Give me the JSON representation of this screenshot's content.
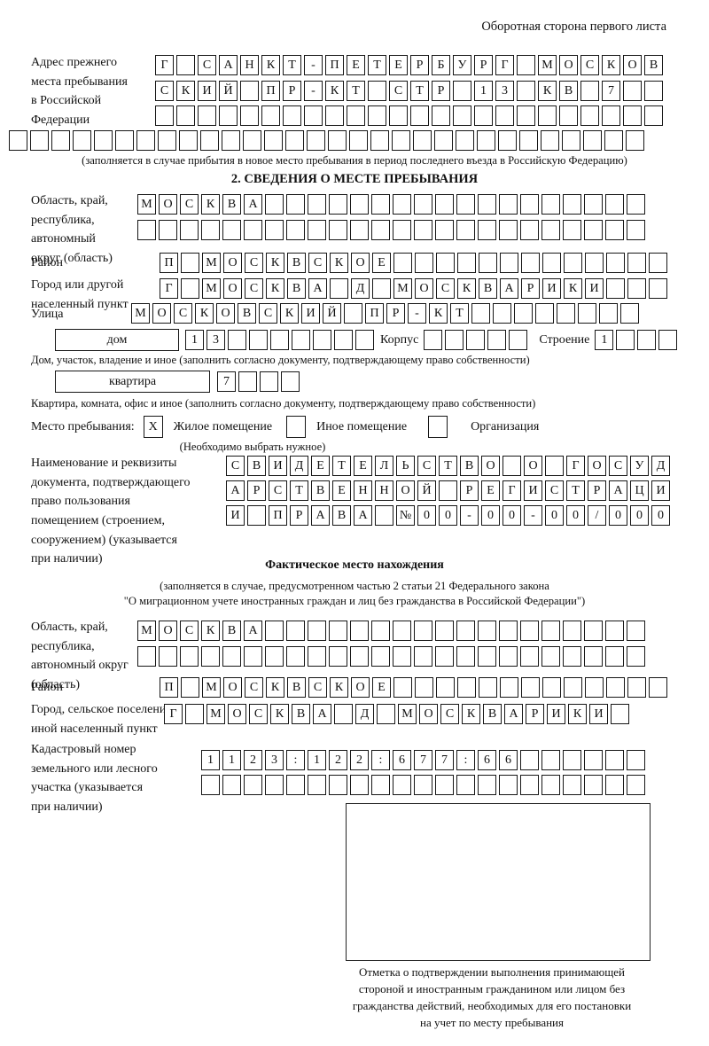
{
  "header": {
    "note": "Оборотная сторона первого листа"
  },
  "prev_address": {
    "label": "Адрес прежнего\nместа пребывания\nв Российской\nФедерации",
    "rows": [
      {
        "text": "Г САНКТ-ПЕТЕРБУРГ МОСКОВ",
        "len": 24
      },
      {
        "text": "СКИЙ ПР-КТ СТР 13 КВ 7",
        "len": 24
      },
      {
        "text": "",
        "len": 24
      },
      {
        "text": "",
        "len": 30
      }
    ],
    "note": "(заполняется в случае прибытия в новое место пребывания в период последнего въезда в Российскую Федерацию)"
  },
  "section2": {
    "title": "2. СВЕДЕНИЯ О МЕСТЕ ПРЕБЫВАНИЯ",
    "oblast": {
      "label": "Область, край,\nреспублика,\nавтономный\nокруг (область)",
      "rows": [
        {
          "text": "МОСКВА",
          "len": 24
        },
        {
          "text": "",
          "len": 24
        }
      ]
    },
    "raion": {
      "label": "Район",
      "row": {
        "text": "П МОСКВСКОЕ",
        "len": 24
      }
    },
    "gorod": {
      "label": "Город или другой\nнаселенный пункт",
      "row": {
        "text": "Г МОСКВА Д МОСКВАРИКИ",
        "len": 24
      }
    },
    "ulica": {
      "label": "Улица",
      "row": {
        "text": "МОСКОВСКИЙ ПР-КТ",
        "len": 24
      }
    },
    "dom": {
      "field_label": "дом",
      "cells": {
        "text": "13",
        "len": 9
      },
      "korpus_label": "Корпус",
      "korpus_cells": {
        "text": "",
        "len": 5
      },
      "stroenie_label": "Строение",
      "stroenie_cells": {
        "text": "1",
        "len": 4
      },
      "note": "Дом, участок, владение и иное (заполнить согласно документу, подтверждающему право собственности)"
    },
    "kvartira": {
      "field_label": "квартира",
      "cells": {
        "text": "7",
        "len": 4
      },
      "note": "Квартира, комната, офис и иное (заполнить согласно документу, подтверждающему право собственности)"
    },
    "mesto": {
      "label": "Место пребывания:",
      "zhiloe_value": "X",
      "zhiloe_label": "Жилое помещение",
      "inoe_value": "",
      "inoe_label": "Иное помещение",
      "org_value": "",
      "org_label": "Организация",
      "note": "(Необходимо выбрать нужное)"
    },
    "doc": {
      "label": "Наименование и реквизиты\nдокумента, подтверждающего\nправо пользования\nпомещением (строением,\nсооружением) (указывается\nпри наличии)",
      "rows": [
        {
          "text": "СВИДЕТЕЛЬСТВО О ГОСУД",
          "len": 21
        },
        {
          "text": "АРСТВЕННОЙ РЕГИСТРАЦИ",
          "len": 21
        },
        {
          "text": "И ПРАВА №00-00-00/000",
          "len": 21
        }
      ]
    }
  },
  "fact": {
    "title": "Фактическое место нахождения",
    "note1": "(заполняется в случае, предусмотренном частью 2 статьи 21 Федерального закона",
    "note2": "\"О миграционном учете иностранных граждан и лиц без гражданства в Российской Федерации\")",
    "oblast": {
      "label": "Область, край,\nреспублика,\nавтономный округ\n(область)",
      "rows": [
        {
          "text": "МОСКВА",
          "len": 24
        },
        {
          "text": "",
          "len": 24
        }
      ]
    },
    "raion": {
      "label": "Район",
      "row": {
        "text": "П МОСКВСКОЕ",
        "len": 24
      }
    },
    "gorod": {
      "label": "Город, сельское поселение,\nиной населенный пункт",
      "row": {
        "text": "Г МОСКВА Д МОСКВАРИКИ",
        "len": 22
      }
    },
    "kadastr": {
      "label": "Кадастровый номер\nземельного или лесного\nучастка (указывается\nпри наличии)",
      "rows": [
        {
          "text": "1123:122:677:66",
          "len": 21
        },
        {
          "text": "",
          "len": 21
        }
      ]
    },
    "otmetka_note": "Отметка о подтверждении выполнения принимающей\nстороной и иностранным гражданином или лицом без\nгражданства действий, необходимых для его постановки\nна учет по месту пребывания"
  }
}
